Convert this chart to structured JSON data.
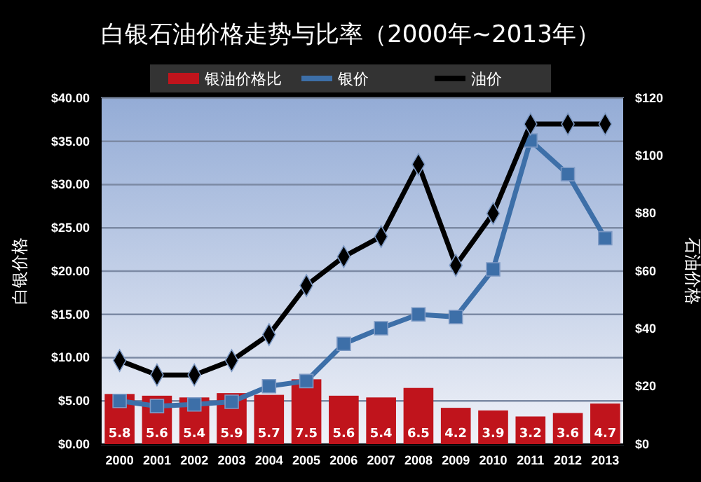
{
  "chart_data": {
    "type": "line",
    "title": "白银石油价格走势与比率（2000年~2013年）",
    "ylabel": "白银价格",
    "y2label": "石油价格",
    "categories": [
      "2000",
      "2001",
      "2002",
      "2003",
      "2004",
      "2005",
      "2006",
      "2007",
      "2008",
      "2009",
      "2010",
      "2011",
      "2012",
      "2013"
    ],
    "series": [
      {
        "name": "银油价格比",
        "type": "bar",
        "color": "#c0141c",
        "axis": "y",
        "values": [
          5.8,
          5.6,
          5.4,
          5.9,
          5.7,
          7.5,
          5.6,
          5.4,
          6.5,
          4.2,
          3.9,
          3.2,
          3.6,
          4.7
        ],
        "value_labels": [
          "5.8",
          "5.6",
          "5.4",
          "5.9",
          "5.7",
          "7.5",
          "5.6",
          "5.4",
          "6.5",
          "4.2",
          "3.9",
          "3.2",
          "3.6",
          "4.7"
        ]
      },
      {
        "name": "银价",
        "color": "#3d6fa8",
        "marker": "square",
        "values": [
          5,
          4.4,
          4.6,
          4.9,
          6.7,
          7.3,
          11.6,
          13.4,
          15,
          14.7,
          20.2,
          35.1,
          31.2,
          23.8
        ]
      },
      {
        "name": "油价",
        "color": "#000000",
        "axis": "y2",
        "marker": "diamond",
        "values": [
          29,
          24,
          24,
          29,
          38,
          55,
          65,
          72,
          97,
          62,
          80,
          111,
          111,
          111
        ]
      }
    ],
    "ylim": [
      0,
      40
    ],
    "yticks": [
      {
        "value": 0,
        "label": "$0.00"
      },
      {
        "value": 5,
        "label": "$5.00"
      },
      {
        "value": 10,
        "label": "$10.00"
      },
      {
        "value": 15,
        "label": "$15.00"
      },
      {
        "value": 20,
        "label": "$20.00"
      },
      {
        "value": 25,
        "label": "$25.00"
      },
      {
        "value": 30,
        "label": "$30.00"
      },
      {
        "value": 35,
        "label": "$35.00"
      },
      {
        "value": 40,
        "label": "$40.00"
      }
    ],
    "y2lim": [
      0,
      120
    ],
    "y2ticks": [
      {
        "value": 0,
        "label": "$0"
      },
      {
        "value": 20,
        "label": "$20"
      },
      {
        "value": 40,
        "label": "$40"
      },
      {
        "value": 60,
        "label": "$60"
      },
      {
        "value": 80,
        "label": "$80"
      },
      {
        "value": 100,
        "label": "$100"
      },
      {
        "value": 120,
        "label": "$120"
      }
    ],
    "grid": "y",
    "legend": "top",
    "line_style": "solid"
  }
}
